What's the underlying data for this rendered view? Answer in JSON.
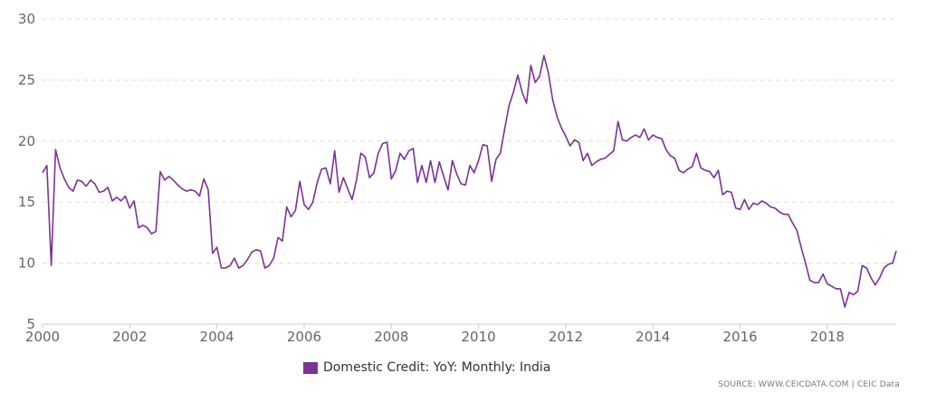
{
  "chart_data": {
    "type": "line",
    "title": "",
    "xlabel": "",
    "ylabel": "",
    "xlim": [
      2000.0,
      2019.58
    ],
    "ylim": [
      5,
      30
    ],
    "x_ticks": [
      "2000",
      "2002",
      "2004",
      "2006",
      "2008",
      "2010",
      "2012",
      "2014",
      "2016",
      "2018"
    ],
    "y_ticks": [
      "5",
      "10",
      "15",
      "20",
      "25",
      "30"
    ],
    "grid": true,
    "legend_position": "bottom-center",
    "series": [
      {
        "name": "Domestic Credit: YoY: Monthly: India",
        "color": "#7b3391",
        "points": [
          [
            2000.0,
            17.4
          ],
          [
            2000.1,
            18.0
          ],
          [
            2000.2,
            9.8
          ],
          [
            2000.3,
            19.3
          ],
          [
            2000.4,
            17.8
          ],
          [
            2000.5,
            16.9
          ],
          [
            2000.6,
            16.2
          ],
          [
            2000.7,
            15.9
          ],
          [
            2000.8,
            16.8
          ],
          [
            2000.9,
            16.7
          ],
          [
            2001.0,
            16.3
          ],
          [
            2001.1,
            16.8
          ],
          [
            2001.2,
            16.5
          ],
          [
            2001.3,
            15.8
          ],
          [
            2001.4,
            15.9
          ],
          [
            2001.5,
            16.2
          ],
          [
            2001.6,
            15.1
          ],
          [
            2001.7,
            15.4
          ],
          [
            2001.8,
            15.1
          ],
          [
            2001.9,
            15.5
          ],
          [
            2002.0,
            14.5
          ],
          [
            2002.1,
            15.1
          ],
          [
            2002.2,
            12.9
          ],
          [
            2002.3,
            13.1
          ],
          [
            2002.4,
            12.9
          ],
          [
            2002.5,
            12.4
          ],
          [
            2002.6,
            12.6
          ],
          [
            2002.7,
            17.5
          ],
          [
            2002.8,
            16.8
          ],
          [
            2002.9,
            17.1
          ],
          [
            2003.0,
            16.8
          ],
          [
            2003.1,
            16.4
          ],
          [
            2003.2,
            16.1
          ],
          [
            2003.3,
            15.9
          ],
          [
            2003.4,
            16.0
          ],
          [
            2003.5,
            15.9
          ],
          [
            2003.6,
            15.5
          ],
          [
            2003.7,
            16.9
          ],
          [
            2003.8,
            16.0
          ],
          [
            2003.9,
            10.8
          ],
          [
            2004.0,
            11.3
          ],
          [
            2004.1,
            9.6
          ],
          [
            2004.2,
            9.6
          ],
          [
            2004.3,
            9.8
          ],
          [
            2004.4,
            10.4
          ],
          [
            2004.5,
            9.6
          ],
          [
            2004.6,
            9.8
          ],
          [
            2004.7,
            10.3
          ],
          [
            2004.8,
            10.9
          ],
          [
            2004.9,
            11.1
          ],
          [
            2005.0,
            11.0
          ],
          [
            2005.1,
            9.6
          ],
          [
            2005.2,
            9.8
          ],
          [
            2005.3,
            10.4
          ],
          [
            2005.4,
            12.1
          ],
          [
            2005.5,
            11.8
          ],
          [
            2005.6,
            14.6
          ],
          [
            2005.7,
            13.8
          ],
          [
            2005.8,
            14.3
          ],
          [
            2005.9,
            16.7
          ],
          [
            2006.0,
            14.8
          ],
          [
            2006.1,
            14.4
          ],
          [
            2006.2,
            15.0
          ],
          [
            2006.3,
            16.6
          ],
          [
            2006.4,
            17.7
          ],
          [
            2006.5,
            17.8
          ],
          [
            2006.6,
            16.5
          ],
          [
            2006.7,
            19.2
          ],
          [
            2006.8,
            15.8
          ],
          [
            2006.9,
            17.0
          ],
          [
            2007.0,
            16.1
          ],
          [
            2007.1,
            15.2
          ],
          [
            2007.2,
            16.8
          ],
          [
            2007.3,
            19.0
          ],
          [
            2007.4,
            18.7
          ],
          [
            2007.5,
            17.0
          ],
          [
            2007.6,
            17.4
          ],
          [
            2007.7,
            19.0
          ],
          [
            2007.8,
            19.8
          ],
          [
            2007.9,
            19.9
          ],
          [
            2008.0,
            16.9
          ],
          [
            2008.1,
            17.6
          ],
          [
            2008.2,
            19.0
          ],
          [
            2008.3,
            18.5
          ],
          [
            2008.4,
            19.2
          ],
          [
            2008.5,
            19.4
          ],
          [
            2008.6,
            16.6
          ],
          [
            2008.7,
            18.0
          ],
          [
            2008.8,
            16.6
          ],
          [
            2008.9,
            18.4
          ],
          [
            2009.0,
            16.6
          ],
          [
            2009.1,
            18.3
          ],
          [
            2009.2,
            17.1
          ],
          [
            2009.3,
            16.0
          ],
          [
            2009.4,
            18.4
          ],
          [
            2009.5,
            17.3
          ],
          [
            2009.6,
            16.5
          ],
          [
            2009.7,
            16.4
          ],
          [
            2009.8,
            18.0
          ],
          [
            2009.9,
            17.4
          ],
          [
            2010.0,
            18.4
          ],
          [
            2010.1,
            19.7
          ],
          [
            2010.2,
            19.6
          ],
          [
            2010.3,
            16.7
          ],
          [
            2010.4,
            18.5
          ],
          [
            2010.5,
            19.0
          ],
          [
            2010.6,
            21.0
          ],
          [
            2010.7,
            22.9
          ],
          [
            2010.8,
            24.0
          ],
          [
            2010.9,
            25.4
          ],
          [
            2011.0,
            24.0
          ],
          [
            2011.1,
            23.1
          ],
          [
            2011.2,
            26.2
          ],
          [
            2011.3,
            24.8
          ],
          [
            2011.4,
            25.3
          ],
          [
            2011.5,
            27.0
          ],
          [
            2011.6,
            25.6
          ],
          [
            2011.7,
            23.4
          ],
          [
            2011.8,
            22.0
          ],
          [
            2011.9,
            21.1
          ],
          [
            2012.0,
            20.4
          ],
          [
            2012.1,
            19.6
          ],
          [
            2012.2,
            20.1
          ],
          [
            2012.3,
            19.9
          ],
          [
            2012.4,
            18.4
          ],
          [
            2012.5,
            19.0
          ],
          [
            2012.6,
            18.0
          ],
          [
            2012.7,
            18.3
          ],
          [
            2012.8,
            18.5
          ],
          [
            2012.9,
            18.6
          ],
          [
            2013.0,
            18.9
          ],
          [
            2013.1,
            19.2
          ],
          [
            2013.2,
            21.6
          ],
          [
            2013.3,
            20.1
          ],
          [
            2013.4,
            20.0
          ],
          [
            2013.5,
            20.3
          ],
          [
            2013.6,
            20.5
          ],
          [
            2013.7,
            20.3
          ],
          [
            2013.8,
            21.0
          ],
          [
            2013.9,
            20.1
          ],
          [
            2014.0,
            20.5
          ],
          [
            2014.1,
            20.3
          ],
          [
            2014.2,
            20.2
          ],
          [
            2014.3,
            19.3
          ],
          [
            2014.4,
            18.8
          ],
          [
            2014.5,
            18.6
          ],
          [
            2014.6,
            17.6
          ],
          [
            2014.7,
            17.4
          ],
          [
            2014.8,
            17.7
          ],
          [
            2014.9,
            17.9
          ],
          [
            2015.0,
            19.0
          ],
          [
            2015.1,
            17.8
          ],
          [
            2015.2,
            17.6
          ],
          [
            2015.3,
            17.5
          ],
          [
            2015.4,
            17.0
          ],
          [
            2015.5,
            17.6
          ],
          [
            2015.6,
            15.6
          ],
          [
            2015.7,
            15.9
          ],
          [
            2015.8,
            15.8
          ],
          [
            2015.9,
            14.5
          ],
          [
            2016.0,
            14.4
          ],
          [
            2016.1,
            15.2
          ],
          [
            2016.2,
            14.4
          ],
          [
            2016.3,
            14.9
          ],
          [
            2016.4,
            14.8
          ],
          [
            2016.5,
            15.1
          ],
          [
            2016.6,
            14.9
          ],
          [
            2016.7,
            14.6
          ],
          [
            2016.8,
            14.5
          ],
          [
            2016.9,
            14.2
          ],
          [
            2017.0,
            14.0
          ],
          [
            2017.1,
            14.0
          ],
          [
            2017.2,
            13.3
          ],
          [
            2017.3,
            12.7
          ],
          [
            2017.4,
            11.3
          ],
          [
            2017.5,
            10.0
          ],
          [
            2017.6,
            8.6
          ],
          [
            2017.7,
            8.4
          ],
          [
            2017.8,
            8.4
          ],
          [
            2017.9,
            9.1
          ],
          [
            2018.0,
            8.3
          ],
          [
            2018.1,
            8.1
          ],
          [
            2018.2,
            7.9
          ],
          [
            2018.3,
            7.9
          ],
          [
            2018.4,
            6.4
          ],
          [
            2018.5,
            7.6
          ],
          [
            2018.6,
            7.4
          ],
          [
            2018.7,
            7.7
          ],
          [
            2018.8,
            9.8
          ],
          [
            2018.9,
            9.6
          ],
          [
            2019.0,
            8.8
          ],
          [
            2019.1,
            8.2
          ],
          [
            2019.2,
            8.8
          ],
          [
            2019.3,
            9.6
          ],
          [
            2019.4,
            9.9
          ],
          [
            2019.5,
            10.0
          ],
          [
            2019.58,
            11.0
          ]
        ]
      }
    ],
    "source": "SOURCE: WWW.CEICDATA.COM | CEIC Data"
  }
}
